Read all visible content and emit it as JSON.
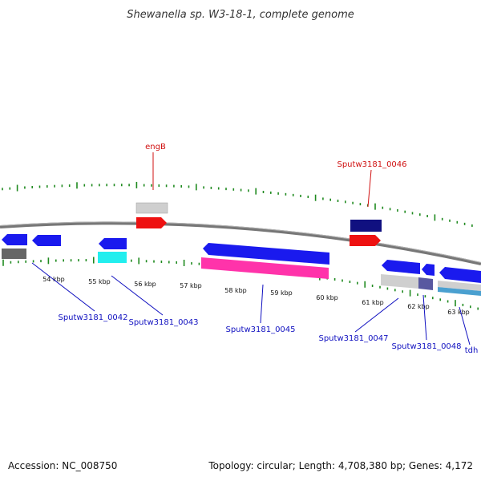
{
  "title": "Shewanella sp. W3-18-1, complete genome",
  "footer": {
    "accession": "Accession: NC_008750",
    "summary": "Topology: circular; Length: 4,708,380 bp; Genes: 4,172"
  },
  "colors": {
    "backbone": "#888888",
    "tick": "#1f8a1f",
    "label_blue": "#1010c0",
    "label_red": "#d01010",
    "cds_forward": "#1a1aee",
    "cds_reverse": "#1a1aee",
    "rna_gray": "#cfcfcf",
    "dark_gray": "#666666",
    "cyan": "#22eeee",
    "magenta": "#ff33aa",
    "red": "#ee1111",
    "navy": "#101080",
    "steel": "#4aa0d0",
    "slate": "#5858a0"
  },
  "chart_data": {
    "type": "genome-map",
    "scale_ticks": [
      "54 kbp",
      "55 kbp",
      "56 kbp",
      "57 kbp",
      "58 kbp",
      "59 kbp",
      "60 kbp",
      "61 kbp",
      "62 kbp",
      "63 kbp"
    ],
    "gene_labels_top": [
      {
        "name": "engB",
        "color": "red"
      },
      {
        "name": "Sputw3181_0046",
        "color": "red"
      }
    ],
    "gene_labels_bottom": [
      {
        "name": "Sputw3181_0042",
        "color": "blue"
      },
      {
        "name": "Sputw3181_0043",
        "color": "blue"
      },
      {
        "name": "Sputw3181_0045",
        "color": "blue"
      },
      {
        "name": "Sputw3181_0047",
        "color": "blue"
      },
      {
        "name": "Sputw3181_0048",
        "color": "blue"
      },
      {
        "name": "tdh",
        "color": "blue"
      }
    ]
  }
}
